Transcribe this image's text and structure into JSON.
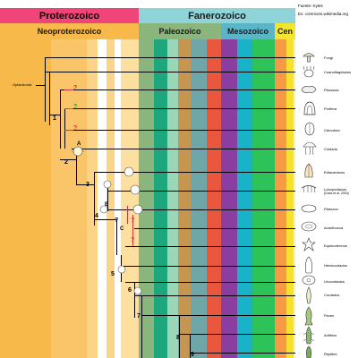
{
  "header": {
    "proterozoic": "Proterozoico",
    "phanerozoic": "Fanerozoico",
    "neoproterozoic": "Neoproterozoico",
    "paleozoic": "Paleozoico",
    "mesozoic": "Mesozoico",
    "cenozoic": "Cen"
  },
  "source": {
    "line1": "Fuente: Kytes",
    "line2": "Ex: commons.wikimedia.org"
  },
  "root_label": "Opistokonta",
  "node_labels": [
    "1",
    "2",
    "A",
    "3",
    "4",
    "B",
    "C",
    "5",
    "6",
    "7",
    "8",
    "9"
  ],
  "question_mark": "?",
  "taxa": [
    {
      "label": "Fungi",
      "icon": "mushroom-icon"
    },
    {
      "label": "Coanoflagelados",
      "icon": "choanoflagellate-icon"
    },
    {
      "label": "Placozoa",
      "icon": "placozoa-icon"
    },
    {
      "label": "Porifera",
      "icon": "sponge-icon"
    },
    {
      "label": "Ctenofora",
      "icon": "comb-jelly-icon"
    },
    {
      "label": "Cnidaria",
      "icon": "jellyfish-icon"
    },
    {
      "label": "Ediacarianos",
      "icon": "ediacaran-icon"
    },
    {
      "label": "Lobopodianos",
      "sublabel": "(Dubs et al. 2004)",
      "icon": "lobopod-icon"
    },
    {
      "label": "Platozoa",
      "icon": "flatworm-icon"
    },
    {
      "label": "Acanthozoa",
      "icon": "acanthozoa-icon"
    },
    {
      "label": "Equinodermos",
      "icon": "starfish-icon"
    },
    {
      "label": "Hemicordados",
      "icon": "acorn-worm-icon"
    },
    {
      "label": "Urocordados",
      "icon": "tunicate-icon"
    },
    {
      "label": "Cordados",
      "icon": "chordate-icon"
    },
    {
      "label": "Peces",
      "icon": "fish-icon"
    },
    {
      "label": "Anfibios",
      "icon": "amphibian-icon"
    },
    {
      "label": "Reptiles",
      "icon": "reptile-icon"
    }
  ],
  "colors": {
    "proterozoic": "#f0457a",
    "phanerozoic": "#8ed4d8",
    "neoproterozoic": "#f7b94a",
    "paleozoic": "#8ab57c",
    "mesozoic": "#5ab5c8",
    "cenozoic": "#f2e530"
  }
}
